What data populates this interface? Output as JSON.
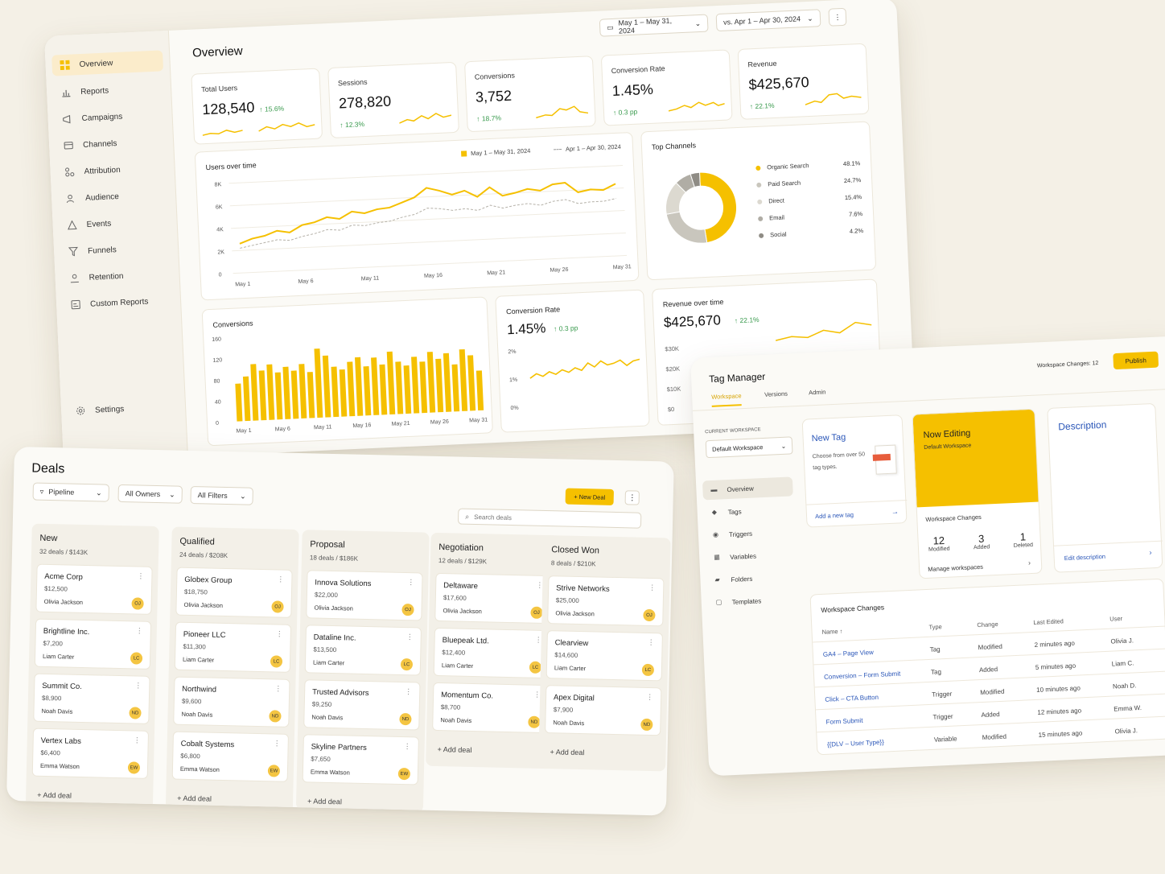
{
  "analytics": {
    "sidebar": {
      "items": [
        {
          "label": "Overview",
          "icon": "grid-icon"
        },
        {
          "label": "Reports",
          "icon": "bar-chart-icon"
        },
        {
          "label": "Campaigns",
          "icon": "megaphone-icon"
        },
        {
          "label": "Channels",
          "icon": "channels-icon"
        },
        {
          "label": "Attribution",
          "icon": "attribution-icon"
        },
        {
          "label": "Audience",
          "icon": "users-icon"
        },
        {
          "label": "Events",
          "icon": "events-icon"
        },
        {
          "label": "Funnels",
          "icon": "funnel-icon"
        },
        {
          "label": "Retention",
          "icon": "retention-icon"
        },
        {
          "label": "Custom Reports",
          "icon": "custom-report-icon"
        }
      ],
      "settings": "Settings"
    },
    "title": "Overview",
    "date_range": "May 1 – May 31, 2024",
    "compare_range": "vs. Apr 1 – Apr 30, 2024",
    "kpis": [
      {
        "title": "Total Users",
        "value": "128,540",
        "delta": "↑ 15.6%"
      },
      {
        "title": "Sessions",
        "value": "278,820",
        "delta": "↑ 12.3%"
      },
      {
        "title": "Conversions",
        "value": "3,752",
        "delta": "↑ 18.7%"
      },
      {
        "title": "Conversion Rate",
        "value": "1.45%",
        "delta": "↑ 0.3 pp"
      },
      {
        "title": "Revenue",
        "value": "$425,670",
        "delta": "↑ 22.1%"
      }
    ],
    "users_chart": {
      "title": "Users over time",
      "legend_current": "May 1 – May 31, 2024",
      "legend_previous": "Apr 1 – Apr 30, 2024",
      "y_ticks": [
        "8K",
        "6K",
        "4K",
        "2K",
        "0"
      ],
      "x_ticks": [
        "May 1",
        "May 6",
        "May 11",
        "May 16",
        "May 21",
        "May 26",
        "May 31"
      ]
    },
    "top_channels": {
      "title": "Top Channels",
      "items": [
        {
          "label": "Organic Search",
          "value": "48.1%",
          "color": "#f5c000"
        },
        {
          "label": "Paid Search",
          "value": "24.7%",
          "color": "#c9c6bd"
        },
        {
          "label": "Direct",
          "value": "15.4%",
          "color": "#dcd9d0"
        },
        {
          "label": "Email",
          "value": "7.6%",
          "color": "#b0ada5"
        },
        {
          "label": "Social",
          "value": "4.2%",
          "color": "#8f8c85"
        }
      ]
    },
    "conversions_chart": {
      "title": "Conversions",
      "y_ticks": [
        "160",
        "120",
        "80",
        "40",
        "0"
      ],
      "x_ticks": [
        "May 1",
        "May 6",
        "May 11",
        "May 16",
        "May 21",
        "May 26",
        "May 31"
      ]
    },
    "conv_rate_card": {
      "title": "Conversion Rate",
      "value": "1.45%",
      "delta": "↑ 0.3 pp",
      "y_ticks": [
        "2%",
        "1%",
        "0%"
      ]
    },
    "revenue_card": {
      "title": "Revenue over time",
      "value": "$425,670",
      "delta": "↑ 22.1%",
      "y_ticks": [
        "$30K",
        "$20K",
        "$10K",
        "$0"
      ]
    }
  },
  "chart_data": [
    {
      "type": "line",
      "title": "Users over time",
      "x": [
        "May 1",
        "May 2",
        "May 3",
        "May 4",
        "May 5",
        "May 6",
        "May 7",
        "May 8",
        "May 9",
        "May 10",
        "May 11",
        "May 12",
        "May 13",
        "May 14",
        "May 15",
        "May 16",
        "May 17",
        "May 18",
        "May 19",
        "May 20",
        "May 21",
        "May 22",
        "May 23",
        "May 24",
        "May 25",
        "May 26",
        "May 27",
        "May 28",
        "May 29",
        "May 30",
        "May 31"
      ],
      "series": [
        {
          "name": "May 1 – May 31, 2024",
          "values": [
            2600,
            3000,
            3200,
            3600,
            3400,
            4000,
            4200,
            4600,
            4400,
            5000,
            4800,
            5100,
            5200,
            5600,
            6000,
            6800,
            6500,
            6100,
            6400,
            5800,
            6600,
            5800,
            6000,
            6300,
            6100,
            6600,
            6700,
            5800,
            6000,
            5900,
            6400
          ]
        },
        {
          "name": "Apr 1 – Apr 30, 2024",
          "values": [
            2200,
            2400,
            2600,
            2800,
            2700,
            3000,
            3200,
            3500,
            3400,
            3800,
            3700,
            3900,
            4000,
            4300,
            4500,
            5000,
            4900,
            4700,
            4800,
            4600,
            5000,
            4700,
            4900,
            5000,
            4800,
            5100,
            5200,
            4800,
            4900,
            4900,
            5100
          ]
        }
      ],
      "ylim": [
        0,
        8000
      ]
    },
    {
      "type": "pie",
      "title": "Top Channels",
      "categories": [
        "Organic Search",
        "Paid Search",
        "Direct",
        "Email",
        "Social"
      ],
      "values": [
        48.1,
        24.7,
        15.4,
        7.6,
        4.2
      ]
    },
    {
      "type": "bar",
      "title": "Conversions",
      "categories": [
        "May 1",
        "May 2",
        "May 3",
        "May 4",
        "May 5",
        "May 6",
        "May 7",
        "May 8",
        "May 9",
        "May 10",
        "May 11",
        "May 12",
        "May 13",
        "May 14",
        "May 15",
        "May 16",
        "May 17",
        "May 18",
        "May 19",
        "May 20",
        "May 21",
        "May 22",
        "May 23",
        "May 24",
        "May 25",
        "May 26",
        "May 27",
        "May 28",
        "May 29",
        "May 30",
        "May 31"
      ],
      "values": [
        72,
        85,
        108,
        95,
        106,
        90,
        100,
        92,
        104,
        88,
        132,
        118,
        96,
        90,
        104,
        112,
        94,
        110,
        96,
        120,
        100,
        92,
        108,
        98,
        116,
        102,
        112,
        90,
        118,
        106,
        76
      ],
      "ylim": [
        0,
        160
      ]
    },
    {
      "type": "line",
      "title": "Conversion Rate",
      "x": [
        "1",
        "2",
        "3",
        "4",
        "5",
        "6",
        "7",
        "8",
        "9",
        "10",
        "11",
        "12",
        "13",
        "14",
        "15",
        "16",
        "17",
        "18"
      ],
      "values": [
        1.0,
        1.15,
        1.05,
        1.2,
        1.1,
        1.25,
        1.15,
        1.3,
        1.2,
        1.45,
        1.3,
        1.5,
        1.35,
        1.4,
        1.5,
        1.3,
        1.45,
        1.5
      ],
      "ylim": [
        0,
        2
      ]
    }
  ],
  "deals": {
    "title": "Deals",
    "filters": [
      "Pipeline",
      "All Owners",
      "All Filters"
    ],
    "new_deal": "+ New Deal",
    "search_placeholder": "Search deals",
    "add_deal": "+ Add deal",
    "columns": [
      {
        "title": "New",
        "sub": "32 deals / $143K",
        "deals": [
          {
            "name": "Acme Corp",
            "value": "$12,500",
            "owner": "Olivia Jackson",
            "initials": "OJ"
          },
          {
            "name": "Brightline Inc.",
            "value": "$7,200",
            "owner": "Liam Carter",
            "initials": "LC"
          },
          {
            "name": "Summit Co.",
            "value": "$8,900",
            "owner": "Noah Davis",
            "initials": "ND"
          },
          {
            "name": "Vertex Labs",
            "value": "$6,400",
            "owner": "Emma Watson",
            "initials": "EW"
          }
        ]
      },
      {
        "title": "Qualified",
        "sub": "24 deals / $208K",
        "deals": [
          {
            "name": "Globex Group",
            "value": "$18,750",
            "owner": "Olivia Jackson",
            "initials": "OJ"
          },
          {
            "name": "Pioneer LLC",
            "value": "$11,300",
            "owner": "Liam Carter",
            "initials": "LC"
          },
          {
            "name": "Northwind",
            "value": "$9,600",
            "owner": "Noah Davis",
            "initials": "ND"
          },
          {
            "name": "Cobalt Systems",
            "value": "$6,800",
            "owner": "Emma Watson",
            "initials": "EW"
          }
        ]
      },
      {
        "title": "Proposal",
        "sub": "18 deals / $186K",
        "deals": [
          {
            "name": "Innova Solutions",
            "value": "$22,000",
            "owner": "Olivia Jackson",
            "initials": "OJ"
          },
          {
            "name": "Dataline Inc.",
            "value": "$13,500",
            "owner": "Liam Carter",
            "initials": "LC"
          },
          {
            "name": "Trusted Advisors",
            "value": "$9,250",
            "owner": "Noah Davis",
            "initials": "ND"
          },
          {
            "name": "Skyline Partners",
            "value": "$7,650",
            "owner": "Emma Watson",
            "initials": "EW"
          }
        ]
      },
      {
        "title": "Negotiation",
        "sub": "12 deals / $129K",
        "deals": [
          {
            "name": "Deltaware",
            "value": "$17,600",
            "owner": "Olivia Jackson",
            "initials": "OJ"
          },
          {
            "name": "Bluepeak Ltd.",
            "value": "$12,400",
            "owner": "Liam Carter",
            "initials": "LC"
          },
          {
            "name": "Momentum Co.",
            "value": "$8,700",
            "owner": "Noah Davis",
            "initials": "ND"
          }
        ]
      },
      {
        "title": "Closed Won",
        "sub": "8 deals / $210K",
        "deals": [
          {
            "name": "Strive Networks",
            "value": "$25,000",
            "owner": "Olivia Jackson",
            "initials": "OJ"
          },
          {
            "name": "Clearview",
            "value": "$14,600",
            "owner": "Liam Carter",
            "initials": "LC"
          },
          {
            "name": "Apex Digital",
            "value": "$7,900",
            "owner": "Noah Davis",
            "initials": "ND"
          }
        ]
      }
    ]
  },
  "tagmgr": {
    "title": "Tag Manager",
    "tabs": [
      "Workspace",
      "Versions",
      "Admin"
    ],
    "workspace_changes_label": "Workspace Changes: 12",
    "publish": "Publish",
    "current_workspace_label": "CURRENT WORKSPACE",
    "current_workspace": "Default Workspace",
    "nav": [
      {
        "label": "Overview",
        "icon": "overview-icon"
      },
      {
        "label": "Tags",
        "icon": "tag-icon"
      },
      {
        "label": "Triggers",
        "icon": "trigger-icon"
      },
      {
        "label": "Variables",
        "icon": "variables-icon"
      },
      {
        "label": "Folders",
        "icon": "folder-icon"
      },
      {
        "label": "Templates",
        "icon": "template-icon"
      }
    ],
    "new_tag": {
      "title": "New Tag",
      "desc": "Choose from over 50 tag types.",
      "link": "Add a new tag"
    },
    "now_editing": {
      "title": "Now Editing",
      "sub": "Default Workspace"
    },
    "ws_changes": {
      "title": "Workspace Changes",
      "stats": [
        {
          "n": "12",
          "label": "Modified"
        },
        {
          "n": "3",
          "label": "Added"
        },
        {
          "n": "1",
          "label": "Deleted"
        }
      ],
      "link": "Manage workspaces"
    },
    "description": {
      "title": "Description",
      "link": "Edit description"
    },
    "table": {
      "title": "Workspace Changes",
      "headers": [
        "Name ↑",
        "Type",
        "Change",
        "Last Edited",
        "User"
      ],
      "rows": [
        [
          "GA4 – Page View",
          "Tag",
          "Modified",
          "2 minutes ago",
          "Olivia J."
        ],
        [
          "Conversion – Form Submit",
          "Tag",
          "Added",
          "5 minutes ago",
          "Liam C."
        ],
        [
          "Click – CTA Button",
          "Trigger",
          "Modified",
          "10 minutes ago",
          "Noah D."
        ],
        [
          "Form Submit",
          "Trigger",
          "Added",
          "12 minutes ago",
          "Emma W."
        ],
        [
          "{{DLV – User Type}}",
          "Variable",
          "Modified",
          "15 minutes ago",
          "Olivia J."
        ]
      ]
    }
  }
}
